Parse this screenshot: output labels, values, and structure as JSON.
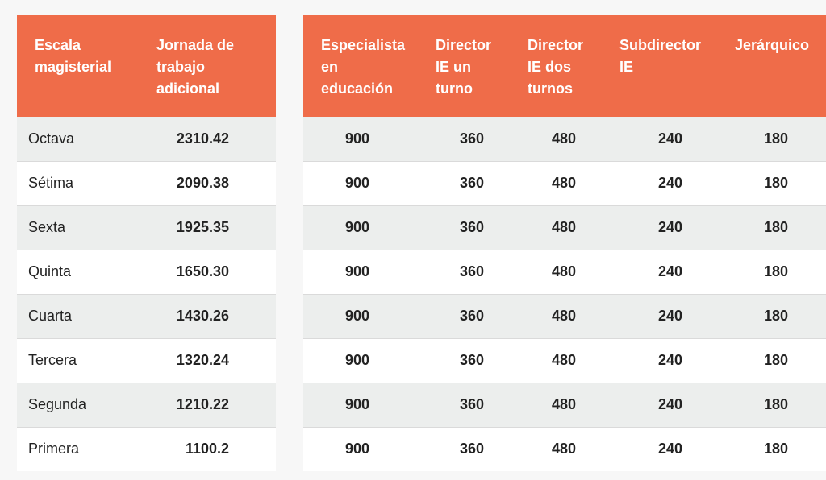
{
  "left_table": {
    "headers": [
      "Escala magisterial",
      "Jornada de trabajo adicional"
    ],
    "rows": [
      {
        "escala": "Octava",
        "jornada": "2310.42"
      },
      {
        "escala": "Sétima",
        "jornada": "2090.38"
      },
      {
        "escala": "Sexta",
        "jornada": "1925.35"
      },
      {
        "escala": "Quinta",
        "jornada": "1650.30"
      },
      {
        "escala": "Cuarta",
        "jornada": "1430.26"
      },
      {
        "escala": "Tercera",
        "jornada": "1320.24"
      },
      {
        "escala": "Segunda",
        "jornada": "1210.22"
      },
      {
        "escala": "Primera",
        "jornada": "1100.2"
      }
    ]
  },
  "right_table": {
    "headers": [
      "Especialista en educación",
      "Director IE un turno",
      "Director IE dos turnos",
      "Subdirector IE",
      "Jerárquico"
    ],
    "rows": [
      [
        "900",
        "360",
        "480",
        "240",
        "180"
      ],
      [
        "900",
        "360",
        "480",
        "240",
        "180"
      ],
      [
        "900",
        "360",
        "480",
        "240",
        "180"
      ],
      [
        "900",
        "360",
        "480",
        "240",
        "180"
      ],
      [
        "900",
        "360",
        "480",
        "240",
        "180"
      ],
      [
        "900",
        "360",
        "480",
        "240",
        "180"
      ],
      [
        "900",
        "360",
        "480",
        "240",
        "180"
      ],
      [
        "900",
        "360",
        "480",
        "240",
        "180"
      ]
    ]
  },
  "colors": {
    "header_bg": "#ef6c49",
    "row_alt_bg": "#eceeed",
    "row_bg": "#ffffff"
  }
}
